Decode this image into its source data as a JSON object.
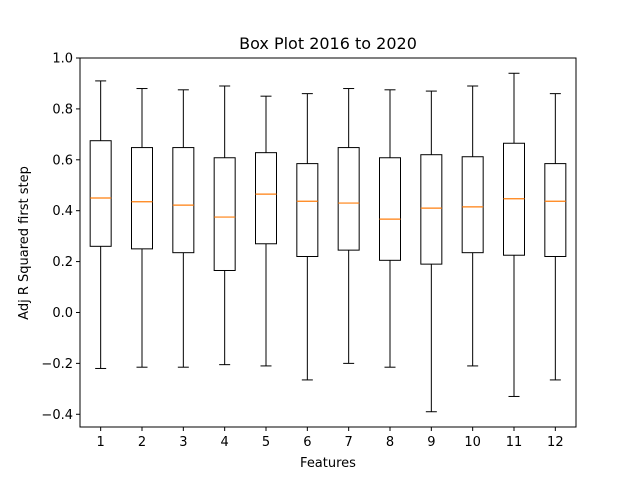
{
  "chart_data": {
    "type": "box",
    "title": "Box Plot 2016 to 2020",
    "xlabel": "Features",
    "ylabel": "Adj R Squared first step",
    "ylim": [
      -0.45,
      1.0
    ],
    "yticks": [
      -0.4,
      -0.2,
      0.0,
      0.2,
      0.4,
      0.6,
      0.8,
      1.0
    ],
    "ytick_labels": [
      "−0.4",
      "−0.2",
      "0.0",
      "0.2",
      "0.4",
      "0.6",
      "0.8",
      "1.0"
    ],
    "categories": [
      "1",
      "2",
      "3",
      "4",
      "5",
      "6",
      "7",
      "8",
      "9",
      "10",
      "11",
      "12"
    ],
    "boxes": [
      {
        "whislo": -0.22,
        "q1": 0.26,
        "med": 0.45,
        "q3": 0.675,
        "whishi": 0.91
      },
      {
        "whislo": -0.215,
        "q1": 0.25,
        "med": 0.435,
        "q3": 0.648,
        "whishi": 0.88
      },
      {
        "whislo": -0.215,
        "q1": 0.235,
        "med": 0.422,
        "q3": 0.648,
        "whishi": 0.875
      },
      {
        "whislo": -0.205,
        "q1": 0.165,
        "med": 0.375,
        "q3": 0.608,
        "whishi": 0.89
      },
      {
        "whislo": -0.21,
        "q1": 0.27,
        "med": 0.465,
        "q3": 0.628,
        "whishi": 0.85
      },
      {
        "whislo": -0.265,
        "q1": 0.22,
        "med": 0.437,
        "q3": 0.585,
        "whishi": 0.86
      },
      {
        "whislo": -0.2,
        "q1": 0.245,
        "med": 0.43,
        "q3": 0.648,
        "whishi": 0.88
      },
      {
        "whislo": -0.215,
        "q1": 0.205,
        "med": 0.367,
        "q3": 0.608,
        "whishi": 0.875
      },
      {
        "whislo": -0.39,
        "q1": 0.19,
        "med": 0.41,
        "q3": 0.62,
        "whishi": 0.87
      },
      {
        "whislo": -0.21,
        "q1": 0.235,
        "med": 0.415,
        "q3": 0.612,
        "whishi": 0.89
      },
      {
        "whislo": -0.33,
        "q1": 0.225,
        "med": 0.447,
        "q3": 0.665,
        "whishi": 0.94
      },
      {
        "whislo": -0.265,
        "q1": 0.22,
        "med": 0.437,
        "q3": 0.585,
        "whishi": 0.86
      }
    ],
    "colors": {
      "box": "#000000",
      "median": "#ff7f0e"
    },
    "grid": false,
    "legend": "none"
  }
}
